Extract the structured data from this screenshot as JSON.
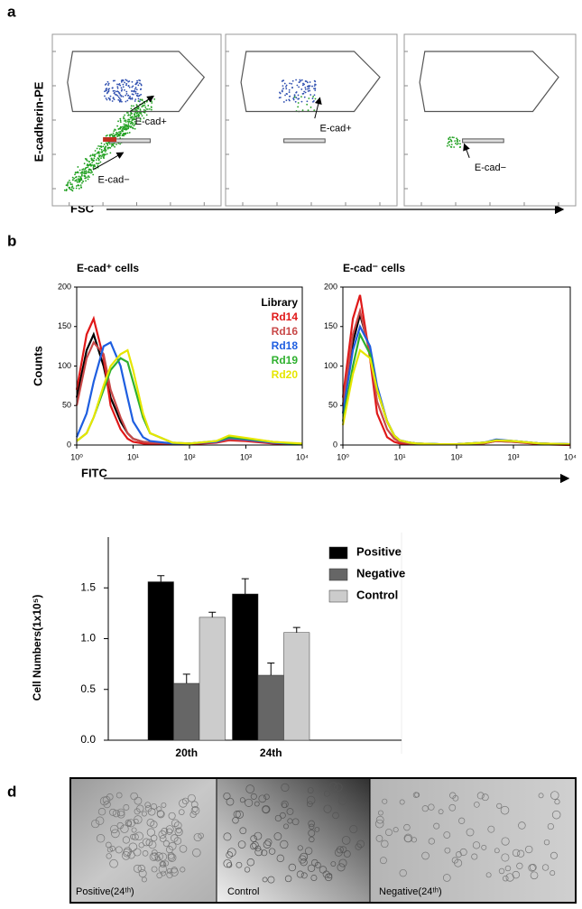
{
  "panel_labels": [
    "a",
    "b",
    "d"
  ],
  "flow": {
    "y_label": "E-cadherin-PE",
    "x_label": "FSC",
    "plots": [
      {
        "annotations": [
          "E-cad+",
          "E-cad−"
        ]
      },
      {
        "annotations": [
          "E-cad+"
        ]
      },
      {
        "annotations": [
          "E-cad−"
        ]
      }
    ]
  },
  "chart_data": [
    {
      "type": "line",
      "title": "E-cad⁺ cells",
      "x_label": "FITC",
      "y_label": "Counts",
      "log_x": true,
      "legend": "upper right",
      "x": [
        1,
        1.5,
        2,
        3,
        4,
        6,
        8,
        10,
        15,
        20,
        50,
        100,
        300,
        500,
        1000,
        3000,
        10000
      ],
      "xlim": [
        1,
        10000
      ],
      "xticks": [
        {
          "value": 1,
          "label": "10⁰"
        },
        {
          "value": 10,
          "label": "10¹"
        },
        {
          "value": 100,
          "label": "10²"
        },
        {
          "value": 1000,
          "label": "10³"
        },
        {
          "value": 10000,
          "label": "10⁴"
        }
      ],
      "ylim": [
        0,
        200
      ],
      "yticks": [
        0,
        50,
        100,
        150,
        200
      ],
      "series": [
        {
          "name": "Library",
          "color": "#000000",
          "values": [
            60,
            120,
            140,
            100,
            60,
            30,
            15,
            8,
            4,
            3,
            2,
            2,
            4,
            8,
            6,
            3,
            1
          ]
        },
        {
          "name": "Rd14",
          "color": "#e01818",
          "values": [
            70,
            140,
            160,
            110,
            50,
            20,
            8,
            4,
            2,
            1,
            1,
            1,
            3,
            6,
            5,
            2,
            1
          ]
        },
        {
          "name": "Rd16",
          "color": "#c84848",
          "values": [
            50,
            110,
            130,
            115,
            70,
            35,
            15,
            8,
            4,
            3,
            2,
            2,
            4,
            7,
            6,
            3,
            1
          ]
        },
        {
          "name": "Rd18",
          "color": "#1e5ee0",
          "values": [
            10,
            40,
            80,
            125,
            130,
            100,
            60,
            30,
            10,
            5,
            2,
            2,
            4,
            9,
            7,
            3,
            1
          ]
        },
        {
          "name": "Rd19",
          "color": "#2eb02e",
          "values": [
            5,
            15,
            35,
            70,
            95,
            110,
            105,
            80,
            35,
            15,
            3,
            2,
            5,
            10,
            8,
            4,
            1
          ]
        },
        {
          "name": "Rd20",
          "color": "#e6e600",
          "values": [
            5,
            15,
            35,
            75,
            100,
            115,
            120,
            95,
            40,
            15,
            3,
            2,
            5,
            12,
            9,
            4,
            2
          ]
        }
      ]
    },
    {
      "type": "line",
      "title": "E-cad⁻ cells",
      "log_x": true,
      "x": [
        1,
        1.5,
        2,
        3,
        4,
        6,
        8,
        10,
        15,
        20,
        50,
        100,
        300,
        500,
        1000,
        3000,
        10000
      ],
      "xlim": [
        1,
        10000
      ],
      "xticks": [
        {
          "value": 1,
          "label": "10⁰"
        },
        {
          "value": 10,
          "label": "10¹"
        },
        {
          "value": 100,
          "label": "10²"
        },
        {
          "value": 1000,
          "label": "10³"
        },
        {
          "value": 10000,
          "label": "10⁴"
        }
      ],
      "ylim": [
        0,
        200
      ],
      "yticks": [
        0,
        50,
        100,
        150,
        200
      ],
      "series": [
        {
          "color": "#000000",
          "values": [
            50,
            130,
            165,
            120,
            70,
            30,
            12,
            6,
            3,
            2,
            1,
            1,
            3,
            6,
            5,
            2,
            1
          ]
        },
        {
          "color": "#e01818",
          "values": [
            60,
            160,
            190,
            110,
            40,
            10,
            4,
            2,
            1,
            1,
            1,
            1,
            2,
            5,
            4,
            1,
            0
          ]
        },
        {
          "color": "#c84848",
          "values": [
            50,
            140,
            170,
            115,
            55,
            20,
            8,
            4,
            2,
            1,
            1,
            1,
            2,
            5,
            4,
            2,
            1
          ]
        },
        {
          "color": "#1e5ee0",
          "values": [
            40,
            120,
            150,
            125,
            75,
            30,
            12,
            6,
            3,
            2,
            1,
            1,
            3,
            7,
            5,
            2,
            1
          ]
        },
        {
          "color": "#2eb02e",
          "values": [
            30,
            100,
            140,
            115,
            70,
            30,
            12,
            6,
            3,
            2,
            1,
            1,
            3,
            6,
            5,
            2,
            1
          ]
        },
        {
          "color": "#e6e600",
          "values": [
            25,
            90,
            120,
            110,
            70,
            30,
            12,
            6,
            3,
            2,
            1,
            1,
            3,
            6,
            5,
            2,
            1
          ]
        }
      ]
    },
    {
      "type": "bar",
      "y_label": "Cell Numbers(1x10⁵)",
      "categories": [
        "20th",
        "24th"
      ],
      "legend": "upper right",
      "ylim": [
        0,
        2
      ],
      "yticks": [
        {
          "value": 0,
          "label": "0.0"
        },
        0.5,
        {
          "value": 1,
          "label": "1.0"
        },
        1.5
      ],
      "series": [
        {
          "name": "Positive",
          "color": "#000000",
          "values": [
            1.56,
            1.44
          ],
          "errors": [
            0.06,
            0.15
          ]
        },
        {
          "name": "Negative",
          "color": "#666666",
          "values": [
            0.56,
            0.64
          ],
          "errors": [
            0.09,
            0.12
          ]
        },
        {
          "name": "Control",
          "color": "#cccccc",
          "values": [
            1.21,
            1.06
          ],
          "errors": [
            0.05,
            0.05
          ]
        }
      ]
    }
  ],
  "micrographs": {
    "captions": [
      "Positive(24ᵗʰ)",
      "Control",
      "Negative(24ᵗʰ)"
    ]
  }
}
